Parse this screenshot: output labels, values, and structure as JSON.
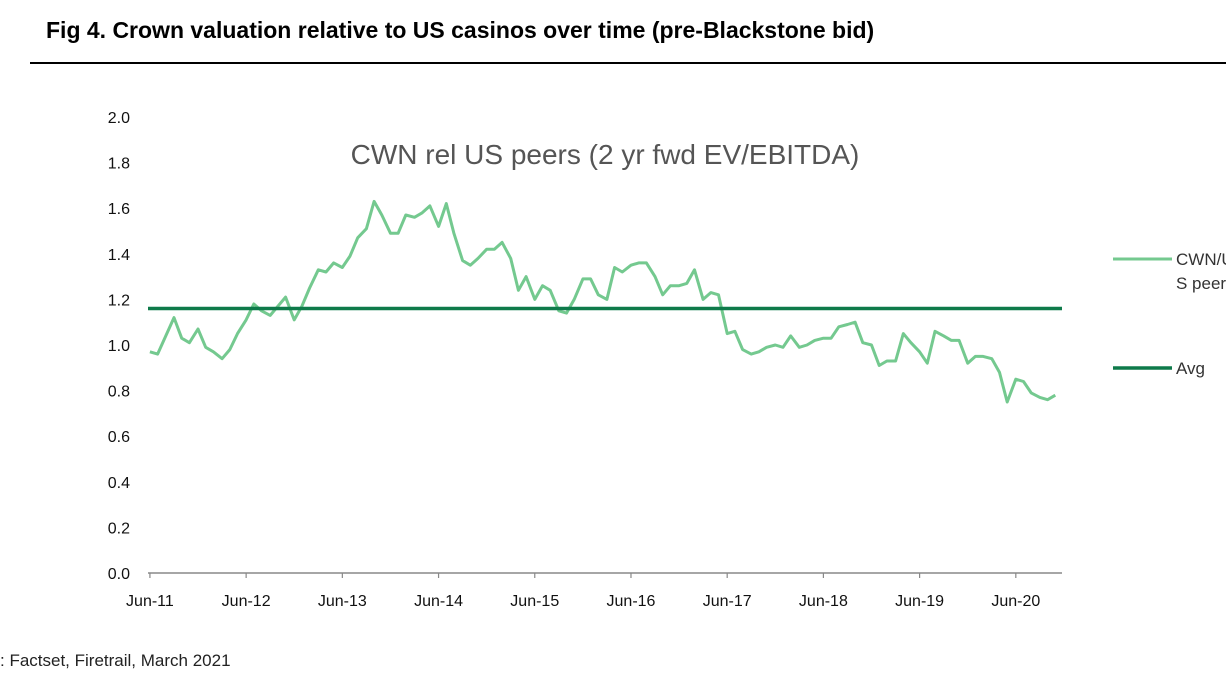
{
  "figure": {
    "title": "Fig 4. Crown valuation relative to US casinos over time (pre-Blackstone bid)",
    "source": ": Factset, Firetrail, March 2021"
  },
  "chart_data": {
    "type": "line",
    "title": "CWN rel US peers (2 yr fwd EV/EBITDA)",
    "xlabel": "",
    "ylabel": "",
    "ylim": [
      0,
      2.0
    ],
    "y_ticks": [
      "0.0",
      "0.2",
      "0.4",
      "0.6",
      "0.8",
      "1.0",
      "1.2",
      "1.4",
      "1.6",
      "1.8",
      "2.0"
    ],
    "x_ticks": [
      "Jun-11",
      "Jun-12",
      "Jun-13",
      "Jun-14",
      "Jun-15",
      "Jun-16",
      "Jun-17",
      "Jun-18",
      "Jun-19",
      "Jun-20"
    ],
    "x_range": [
      2011.4,
      2020.9
    ],
    "grid": false,
    "legend_position": "right",
    "colors": {
      "series": "#74c98f",
      "avg": "#0e7a4a",
      "axis": "#888888"
    },
    "series": [
      {
        "name": "CWN/US peers",
        "legend_lines": [
          "CWN/U",
          "S peers"
        ],
        "x": [
          2011.42,
          2011.5,
          2011.67,
          2011.75,
          2011.83,
          2011.92,
          2012.0,
          2012.08,
          2012.17,
          2012.25,
          2012.33,
          2012.42,
          2012.5,
          2012.58,
          2012.67,
          2012.75,
          2012.83,
          2012.92,
          2013.0,
          2013.08,
          2013.17,
          2013.25,
          2013.33,
          2013.42,
          2013.5,
          2013.58,
          2013.67,
          2013.75,
          2013.83,
          2013.92,
          2014.0,
          2014.08,
          2014.17,
          2014.25,
          2014.33,
          2014.42,
          2014.5,
          2014.58,
          2014.67,
          2014.75,
          2014.83,
          2014.92,
          2015.0,
          2015.08,
          2015.17,
          2015.25,
          2015.33,
          2015.42,
          2015.5,
          2015.58,
          2015.67,
          2015.75,
          2015.83,
          2015.92,
          2016.0,
          2016.08,
          2016.17,
          2016.25,
          2016.33,
          2016.42,
          2016.5,
          2016.58,
          2016.67,
          2016.75,
          2016.83,
          2016.92,
          2017.0,
          2017.08,
          2017.17,
          2017.25,
          2017.33,
          2017.42,
          2017.5,
          2017.58,
          2017.67,
          2017.75,
          2017.83,
          2017.92,
          2018.0,
          2018.08,
          2018.17,
          2018.25,
          2018.33,
          2018.42,
          2018.5,
          2018.58,
          2018.67,
          2018.75,
          2018.83,
          2018.92,
          2019.0,
          2019.08,
          2019.17,
          2019.25,
          2019.33,
          2019.42,
          2019.5,
          2019.58,
          2019.67,
          2019.75,
          2019.83,
          2019.92,
          2020.0,
          2020.08,
          2020.17,
          2020.25,
          2020.33,
          2020.42,
          2020.5,
          2020.58,
          2020.67,
          2020.75,
          2020.83
        ],
        "values": [
          0.97,
          0.96,
          1.12,
          1.03,
          1.01,
          1.07,
          0.99,
          0.97,
          0.94,
          0.98,
          1.05,
          1.11,
          1.18,
          1.15,
          1.13,
          1.17,
          1.21,
          1.11,
          1.17,
          1.25,
          1.33,
          1.32,
          1.36,
          1.34,
          1.39,
          1.47,
          1.51,
          1.63,
          1.57,
          1.49,
          1.49,
          1.57,
          1.56,
          1.58,
          1.61,
          1.52,
          1.62,
          1.49,
          1.37,
          1.35,
          1.38,
          1.42,
          1.42,
          1.45,
          1.38,
          1.24,
          1.3,
          1.2,
          1.26,
          1.24,
          1.15,
          1.14,
          1.2,
          1.29,
          1.29,
          1.22,
          1.2,
          1.34,
          1.32,
          1.35,
          1.36,
          1.36,
          1.3,
          1.22,
          1.26,
          1.26,
          1.27,
          1.33,
          1.2,
          1.23,
          1.22,
          1.05,
          1.06,
          0.98,
          0.96,
          0.97,
          0.99,
          1.0,
          0.99,
          1.04,
          0.99,
          1.0,
          1.02,
          1.03,
          1.03,
          1.08,
          1.09,
          1.1,
          1.01,
          1.0,
          0.91,
          0.93,
          0.93,
          1.05,
          1.01,
          0.97,
          0.92,
          1.06,
          1.04,
          1.02,
          1.02,
          0.92,
          0.95,
          0.95,
          0.94,
          0.88,
          0.75,
          0.85,
          0.84,
          0.79,
          0.77,
          0.76,
          0.78
        ]
      },
      {
        "name": "Avg",
        "legend_lines": [
          "Avg"
        ],
        "values": [
          1.16
        ]
      }
    ]
  }
}
